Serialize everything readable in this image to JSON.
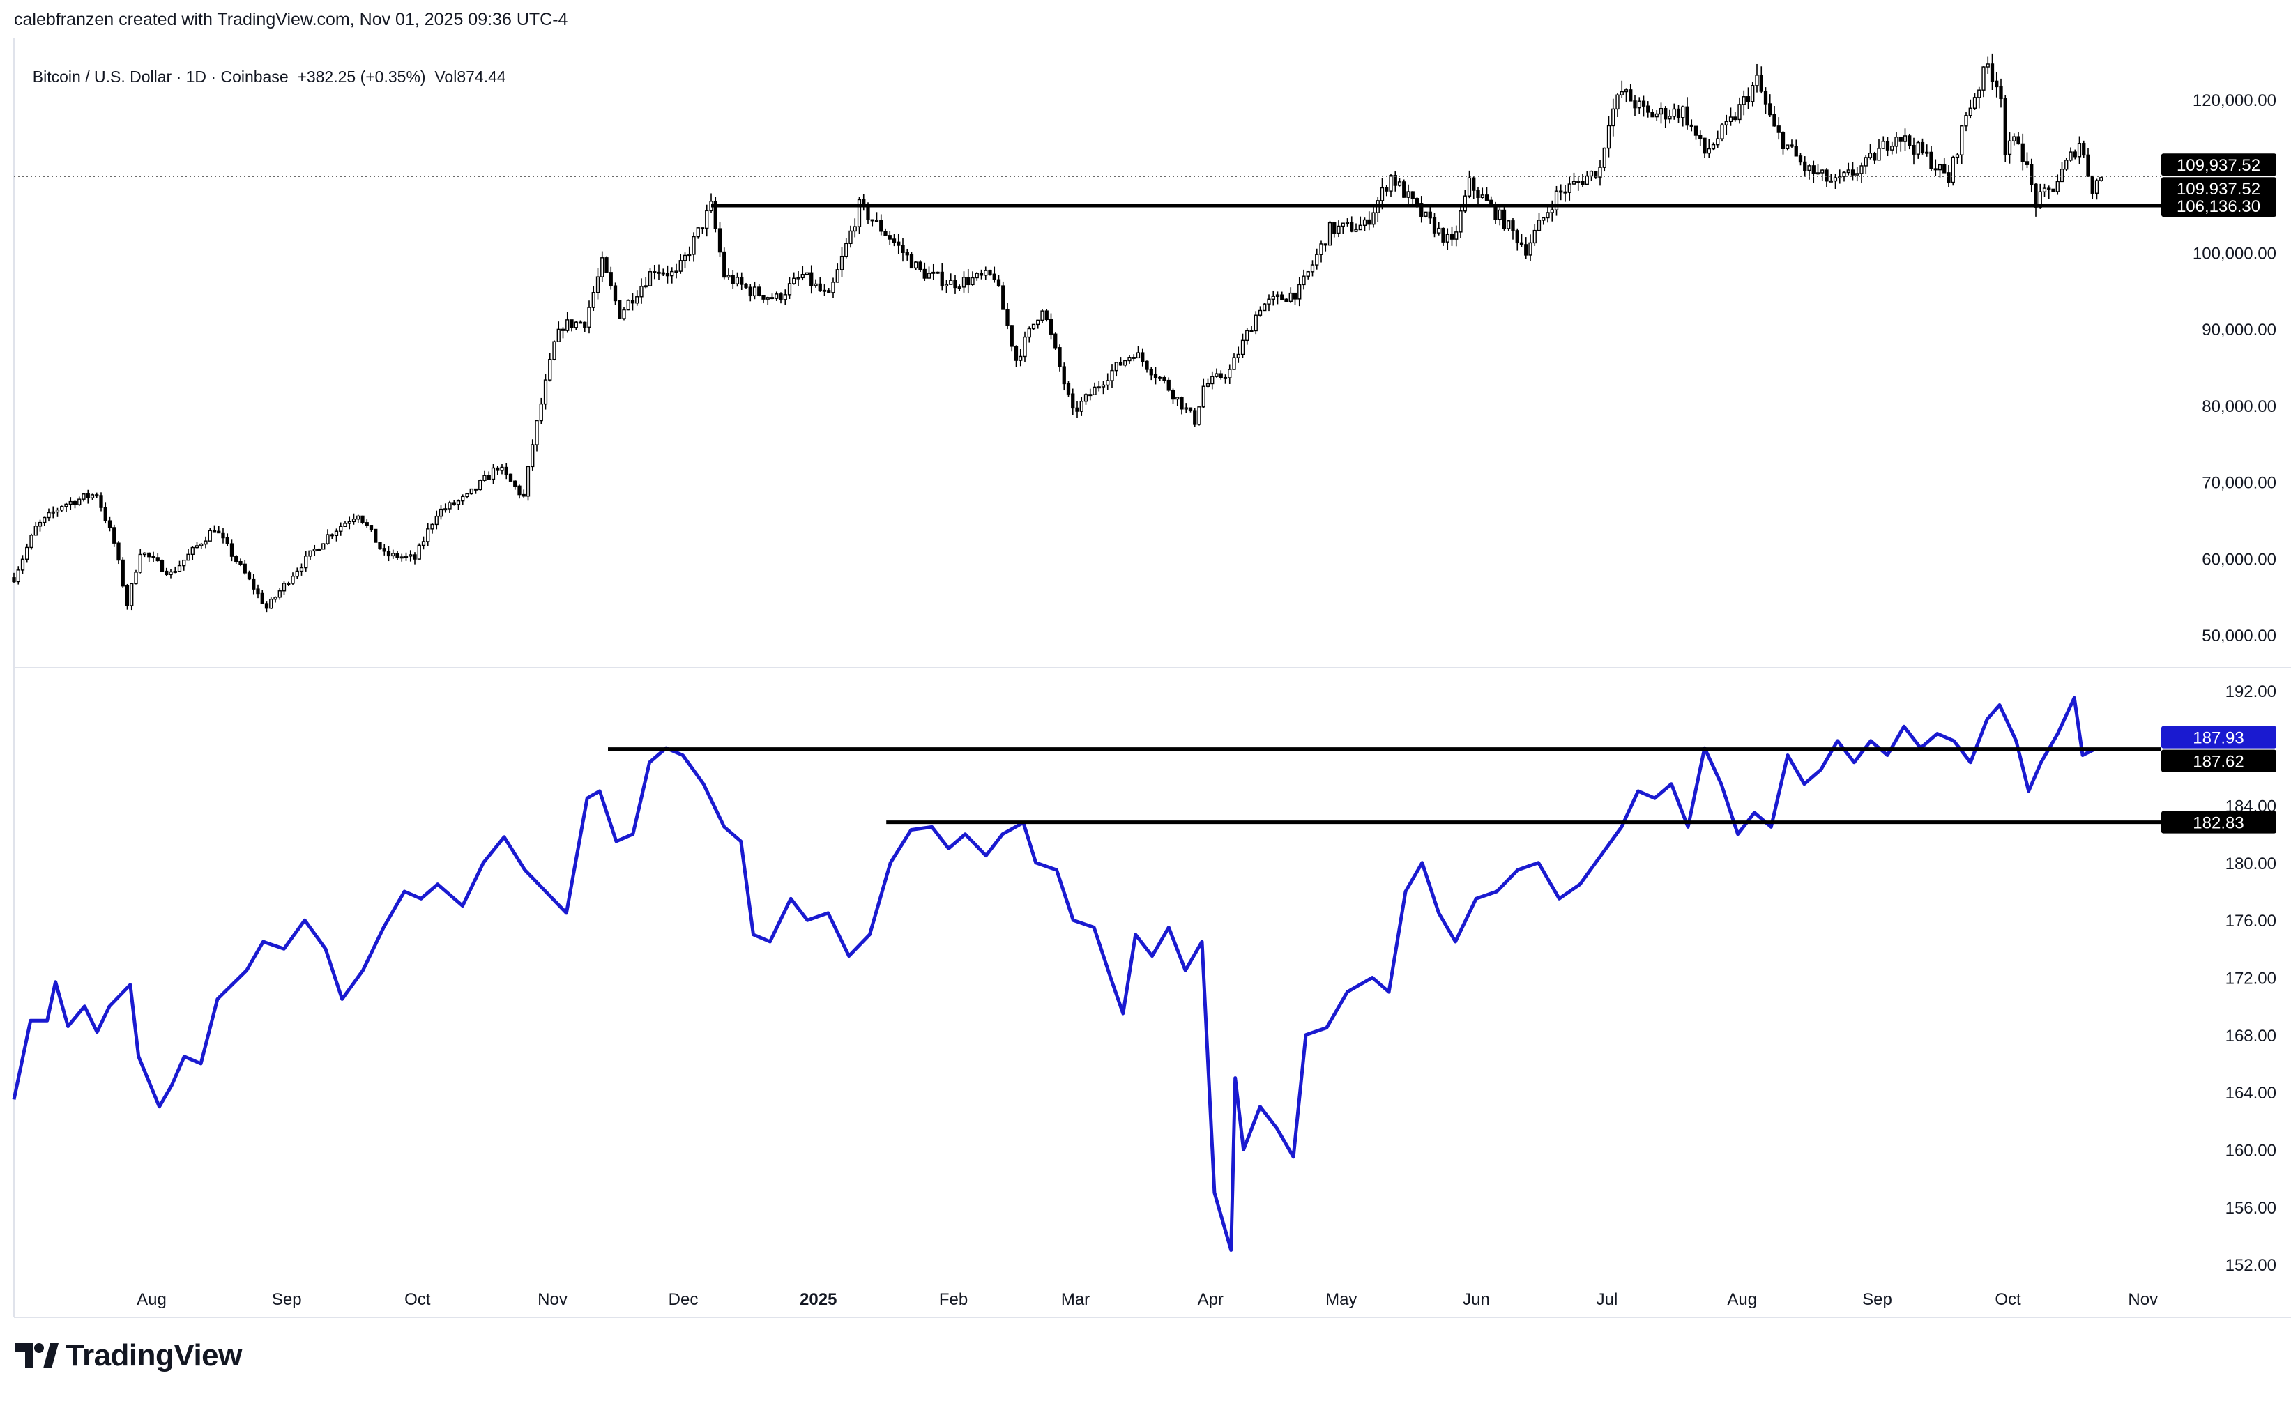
{
  "header": {
    "credit": "calebfranzen created with TradingView.com, Nov 01, 2025 09:36 UTC-4"
  },
  "symbol_bar": {
    "name": "Bitcoin / U.S. Dollar · 1D · Coinbase",
    "change": "+382.25 (+0.35%)",
    "volume": "Vol874.44"
  },
  "brand": {
    "logo_text": "TradingView"
  },
  "colors": {
    "candles": "#000000",
    "line": "#1a1ad0",
    "grid": "#e0e3eb",
    "tag_dark": "#000000",
    "tag_blue": "#1a1ad0"
  },
  "chart_data": [
    {
      "type": "candlestick",
      "title": "Bitcoin / U.S. Dollar · 1D · Coinbase",
      "ylim": [
        46000,
        128000
      ],
      "y_ticks": [
        "50,000.00",
        "60,000.00",
        "70,000.00",
        "80,000.00",
        "90,000.00",
        "100,000.00",
        "120,000.00"
      ],
      "y_tick_values": [
        50000,
        60000,
        70000,
        80000,
        90000,
        100000,
        120000
      ],
      "x_ticks": [
        "Aug",
        "Sep",
        "Oct",
        "Nov",
        "Dec",
        "2025",
        "Feb",
        "Mar",
        "Apr",
        "May",
        "Jun",
        "Jul",
        "Aug",
        "Sep",
        "Oct",
        "Nov"
      ],
      "x_tick_dates": [
        "2024-08-01",
        "2024-09-01",
        "2024-10-01",
        "2024-11-01",
        "2024-12-01",
        "2025-01-01",
        "2025-02-01",
        "2025-03-01",
        "2025-04-01",
        "2025-05-01",
        "2025-06-01",
        "2025-07-01",
        "2025-08-01",
        "2025-09-01",
        "2025-10-01",
        "2025-11-01"
      ],
      "x_range": [
        "2024-07-10",
        "2025-11-14"
      ],
      "close_path": [
        [
          "2024-07-10",
          57500
        ],
        [
          "2024-07-15",
          64000
        ],
        [
          "2024-07-21",
          67000
        ],
        [
          "2024-07-29",
          68500
        ],
        [
          "2024-08-02",
          62000
        ],
        [
          "2024-08-05",
          54000
        ],
        [
          "2024-08-08",
          61000
        ],
        [
          "2024-08-15",
          58000
        ],
        [
          "2024-08-25",
          64000
        ],
        [
          "2024-09-01",
          58000
        ],
        [
          "2024-09-06",
          53500
        ],
        [
          "2024-09-12",
          58000
        ],
        [
          "2024-09-20",
          63000
        ],
        [
          "2024-09-27",
          66000
        ],
        [
          "2024-10-03",
          60500
        ],
        [
          "2024-10-10",
          60000
        ],
        [
          "2024-10-15",
          66000
        ],
        [
          "2024-10-22",
          68000
        ],
        [
          "2024-10-29",
          72000
        ],
        [
          "2024-11-04",
          68000
        ],
        [
          "2024-11-06",
          75000
        ],
        [
          "2024-11-11",
          88000
        ],
        [
          "2024-11-13",
          90500
        ],
        [
          "2024-11-18",
          91000
        ],
        [
          "2024-11-22",
          98500
        ],
        [
          "2024-11-26",
          92000
        ],
        [
          "2024-12-04",
          98000
        ],
        [
          "2024-12-09",
          97000
        ],
        [
          "2024-12-17",
          106000
        ],
        [
          "2024-12-20",
          97000
        ],
        [
          "2024-12-26",
          95000
        ],
        [
          "2025-01-01",
          94000
        ],
        [
          "2025-01-07",
          97000
        ],
        [
          "2025-01-13",
          94000
        ],
        [
          "2025-01-20",
          106000
        ],
        [
          "2025-01-27",
          102000
        ],
        [
          "2025-02-03",
          97500
        ],
        [
          "2025-02-10",
          96000
        ],
        [
          "2025-02-20",
          97000
        ],
        [
          "2025-02-25",
          86000
        ],
        [
          "2025-03-03",
          93000
        ],
        [
          "2025-03-10",
          79000
        ],
        [
          "2025-03-18",
          84000
        ],
        [
          "2025-03-24",
          87000
        ],
        [
          "2025-03-31",
          83000
        ],
        [
          "2025-04-07",
          78000
        ],
        [
          "2025-04-09",
          82500
        ],
        [
          "2025-04-15",
          84500
        ],
        [
          "2025-04-22",
          93000
        ],
        [
          "2025-05-01",
          95000
        ],
        [
          "2025-05-08",
          103000
        ],
        [
          "2025-05-16",
          103500
        ],
        [
          "2025-05-22",
          110000
        ],
        [
          "2025-05-29",
          105000
        ],
        [
          "2025-06-05",
          101000
        ],
        [
          "2025-06-09",
          109000
        ],
        [
          "2025-06-17",
          104000
        ],
        [
          "2025-06-22",
          100500
        ],
        [
          "2025-06-29",
          107500
        ],
        [
          "2025-07-09",
          111000
        ],
        [
          "2025-07-11",
          117500
        ],
        [
          "2025-07-14",
          121000
        ],
        [
          "2025-07-20",
          118000
        ],
        [
          "2025-07-28",
          118500
        ],
        [
          "2025-08-02",
          113000
        ],
        [
          "2025-08-08",
          117000
        ],
        [
          "2025-08-14",
          122500
        ],
        [
          "2025-08-18",
          116000
        ],
        [
          "2025-08-25",
          111000
        ],
        [
          "2025-09-01",
          109000
        ],
        [
          "2025-09-08",
          111500
        ],
        [
          "2025-09-15",
          115500
        ],
        [
          "2025-09-22",
          112500
        ],
        [
          "2025-09-27",
          109500
        ],
        [
          "2025-10-01",
          118000
        ],
        [
          "2025-10-06",
          124500
        ],
        [
          "2025-10-09",
          121000
        ],
        [
          "2025-10-10",
          113000
        ],
        [
          "2025-10-13",
          115000
        ],
        [
          "2025-10-17",
          106500
        ],
        [
          "2025-10-21",
          108500
        ],
        [
          "2025-10-27",
          114500
        ],
        [
          "2025-10-30",
          108500
        ],
        [
          "2025-11-01",
          109937.52
        ]
      ],
      "horizontal_lines": [
        {
          "y": 106136.3,
          "from": "2024-12-17"
        }
      ],
      "price_tags": [
        {
          "label": "109,937.52",
          "value": 109937.52,
          "offset": -1
        },
        {
          "label": "109,937.52",
          "value": 109937.52,
          "offset": 1
        },
        {
          "label": "106,136.30",
          "value": 106136.3,
          "offset": 0
        }
      ]
    },
    {
      "type": "line",
      "ylim": [
        150.5,
        193.5
      ],
      "y_ticks": [
        "152.00",
        "156.00",
        "160.00",
        "164.00",
        "168.00",
        "172.00",
        "176.00",
        "180.00",
        "184.00",
        "192.00"
      ],
      "y_tick_values": [
        152,
        156,
        160,
        164,
        168,
        172,
        176,
        180,
        184,
        192
      ],
      "points": [
        [
          "2024-07-10",
          163.5
        ],
        [
          "2024-07-14",
          169.0
        ],
        [
          "2024-07-18",
          169.0
        ],
        [
          "2024-07-20",
          171.7
        ],
        [
          "2024-07-23",
          168.6
        ],
        [
          "2024-07-27",
          170.0
        ],
        [
          "2024-07-30",
          168.2
        ],
        [
          "2024-08-02",
          170.0
        ],
        [
          "2024-08-07",
          171.5
        ],
        [
          "2024-08-09",
          166.5
        ],
        [
          "2024-08-14",
          163.0
        ],
        [
          "2024-08-17",
          164.5
        ],
        [
          "2024-08-20",
          166.5
        ],
        [
          "2024-08-24",
          166.0
        ],
        [
          "2024-08-28",
          170.5
        ],
        [
          "2024-09-04",
          172.5
        ],
        [
          "2024-09-08",
          174.5
        ],
        [
          "2024-09-13",
          174.0
        ],
        [
          "2024-09-18",
          176.0
        ],
        [
          "2024-09-23",
          174.0
        ],
        [
          "2024-09-27",
          170.5
        ],
        [
          "2024-10-02",
          172.5
        ],
        [
          "2024-10-07",
          175.5
        ],
        [
          "2024-10-12",
          178.0
        ],
        [
          "2024-10-16",
          177.5
        ],
        [
          "2024-10-20",
          178.5
        ],
        [
          "2024-10-26",
          177.0
        ],
        [
          "2024-10-31",
          180.0
        ],
        [
          "2024-11-05",
          181.8
        ],
        [
          "2024-11-10",
          179.5
        ],
        [
          "2024-11-15",
          178.0
        ],
        [
          "2024-11-20",
          176.5
        ],
        [
          "2024-11-25",
          184.5
        ],
        [
          "2024-11-28",
          185.0
        ],
        [
          "2024-12-02",
          181.5
        ],
        [
          "2024-12-06",
          182.0
        ],
        [
          "2024-12-10",
          187.0
        ],
        [
          "2024-12-14",
          188.0
        ],
        [
          "2024-12-18",
          187.5
        ],
        [
          "2024-12-23",
          185.5
        ],
        [
          "2024-12-28",
          182.5
        ],
        [
          "2025-01-01",
          181.5
        ],
        [
          "2025-01-04",
          175.0
        ],
        [
          "2025-01-08",
          174.5
        ],
        [
          "2025-01-13",
          177.5
        ],
        [
          "2025-01-17",
          176.0
        ],
        [
          "2025-01-22",
          176.5
        ],
        [
          "2025-01-27",
          173.5
        ],
        [
          "2025-02-01",
          175.0
        ],
        [
          "2025-02-06",
          180.0
        ],
        [
          "2025-02-11",
          182.3
        ],
        [
          "2025-02-16",
          182.5
        ],
        [
          "2025-02-20",
          181.0
        ],
        [
          "2025-02-24",
          182.0
        ],
        [
          "2025-03-01",
          180.5
        ],
        [
          "2025-03-05",
          182.0
        ],
        [
          "2025-03-10",
          182.8
        ],
        [
          "2025-03-13",
          180.0
        ],
        [
          "2025-03-18",
          179.5
        ],
        [
          "2025-03-22",
          176.0
        ],
        [
          "2025-03-27",
          175.5
        ],
        [
          "2025-03-31",
          172.0
        ],
        [
          "2025-04-03",
          169.5
        ],
        [
          "2025-04-06",
          175.0
        ],
        [
          "2025-04-10",
          173.5
        ],
        [
          "2025-04-14",
          175.5
        ],
        [
          "2025-04-18",
          172.5
        ],
        [
          "2025-04-22",
          174.5
        ],
        [
          "2025-04-25",
          157.0
        ],
        [
          "2025-04-29",
          153.0
        ],
        [
          "2025-04-30",
          165.0
        ],
        [
          "2025-05-02",
          160.0
        ],
        [
          "2025-05-06",
          163.0
        ],
        [
          "2025-05-10",
          161.5
        ],
        [
          "2025-05-14",
          159.5
        ],
        [
          "2025-05-17",
          168.0
        ],
        [
          "2025-05-22",
          168.5
        ],
        [
          "2025-05-27",
          171.0
        ],
        [
          "2025-06-02",
          172.0
        ],
        [
          "2025-06-06",
          171.0
        ],
        [
          "2025-06-10",
          178.0
        ],
        [
          "2025-06-14",
          180.0
        ],
        [
          "2025-06-18",
          176.5
        ],
        [
          "2025-06-22",
          174.5
        ],
        [
          "2025-06-27",
          177.5
        ],
        [
          "2025-07-02",
          178.0
        ],
        [
          "2025-07-07",
          179.5
        ],
        [
          "2025-07-12",
          180.0
        ],
        [
          "2025-07-17",
          177.5
        ],
        [
          "2025-07-22",
          178.5
        ],
        [
          "2025-07-27",
          180.5
        ],
        [
          "2025-08-01",
          182.5
        ],
        [
          "2025-08-05",
          185.0
        ],
        [
          "2025-08-09",
          184.5
        ],
        [
          "2025-08-13",
          185.5
        ],
        [
          "2025-08-17",
          182.5
        ],
        [
          "2025-08-21",
          188.0
        ],
        [
          "2025-08-25",
          185.5
        ],
        [
          "2025-08-29",
          182.0
        ],
        [
          "2025-09-02",
          183.5
        ],
        [
          "2025-09-06",
          182.5
        ],
        [
          "2025-09-10",
          187.5
        ],
        [
          "2025-09-14",
          185.5
        ],
        [
          "2025-09-18",
          186.5
        ],
        [
          "2025-09-22",
          188.5
        ],
        [
          "2025-09-26",
          187.0
        ],
        [
          "2025-09-30",
          188.5
        ],
        [
          "2025-10-04",
          187.5
        ],
        [
          "2025-10-08",
          189.5
        ],
        [
          "2025-10-12",
          188.0
        ],
        [
          "2025-10-16",
          189.0
        ],
        [
          "2025-10-20",
          188.5
        ],
        [
          "2025-10-24",
          187.0
        ],
        [
          "2025-10-28",
          190.0
        ],
        [
          "2025-10-31",
          191.0
        ],
        [
          "2025-11-04",
          188.5
        ],
        [
          "2025-11-07",
          185.0
        ],
        [
          "2025-11-10",
          187.0
        ],
        [
          "2025-11-14",
          189.0
        ],
        [
          "2025-11-18",
          191.5
        ],
        [
          "2025-11-20",
          187.5
        ],
        [
          "2025-11-23",
          187.93
        ]
      ],
      "horizontal_lines": [
        {
          "y": 187.93,
          "from": "2024-11-30"
        },
        {
          "y": 182.83,
          "from": "2025-02-05"
        }
      ],
      "price_tags": [
        {
          "label": "187.93",
          "value": 187.93,
          "color": "blue"
        },
        {
          "label": "187.62",
          "value": 187.62,
          "color": "dark"
        },
        {
          "label": "182.83",
          "value": 182.83,
          "color": "dark"
        }
      ]
    }
  ]
}
